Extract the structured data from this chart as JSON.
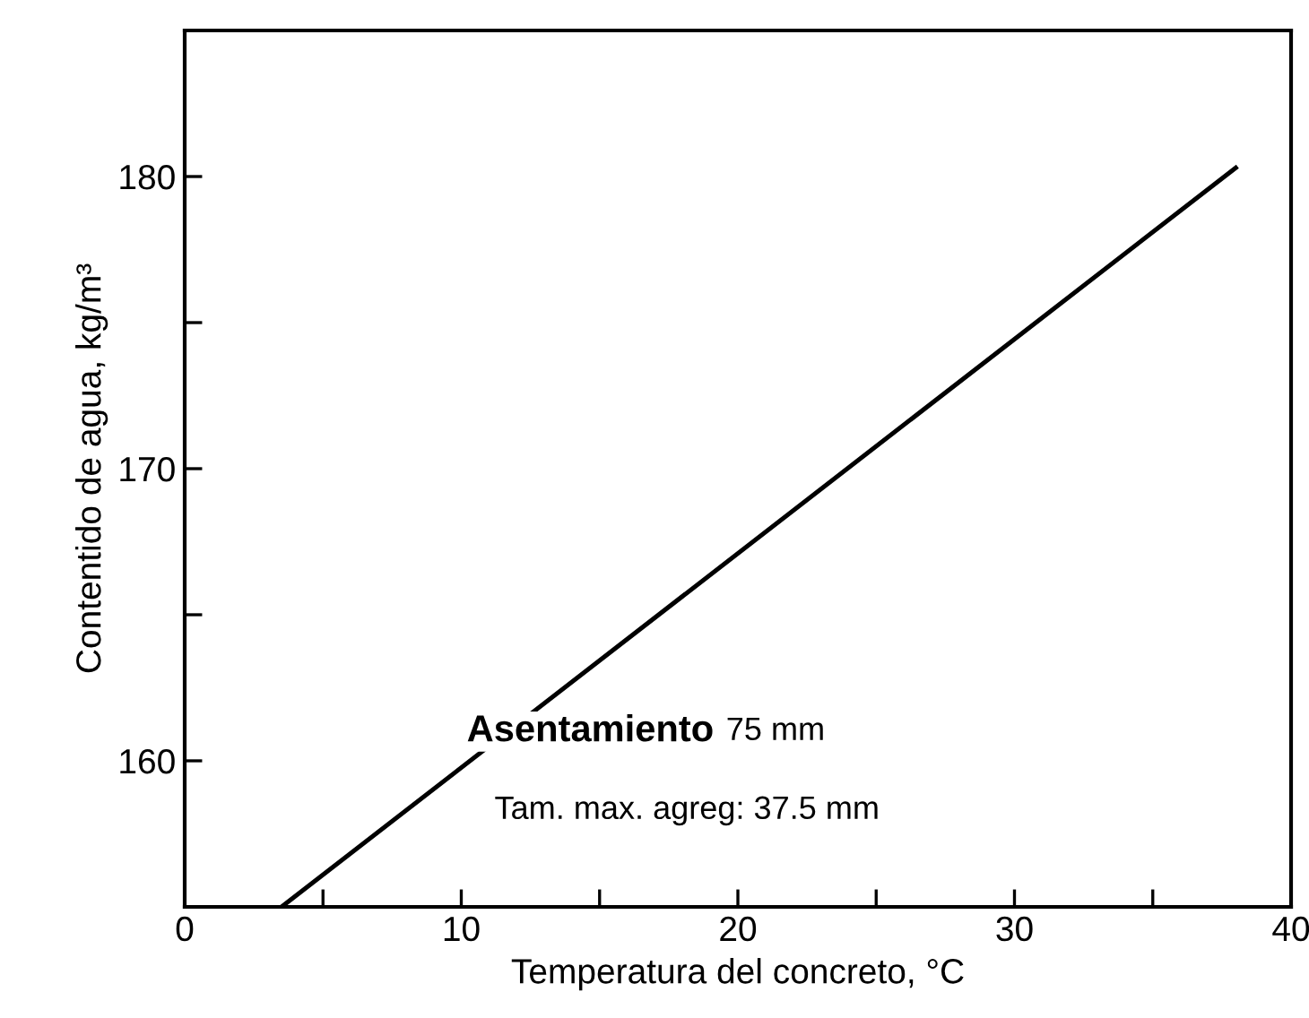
{
  "chart_data": {
    "type": "line",
    "xlabel": "Temperatura del concreto, °C",
    "ylabel": "Contentido de agua, kg/m³",
    "x": [
      3.5,
      38
    ],
    "series": [
      {
        "color": "#000000",
        "values": [
          155,
          180.3
        ]
      }
    ],
    "xlim": [
      0,
      40
    ],
    "ylim": [
      155,
      185
    ],
    "xticks": [
      0,
      {
        "value": 5,
        "label": null
      },
      10,
      {
        "value": 15,
        "label": null
      },
      20,
      {
        "value": 25,
        "label": null
      },
      30,
      {
        "value": 35,
        "label": null
      },
      40
    ],
    "yticks": [
      160,
      {
        "value": 165,
        "label": null
      },
      170,
      {
        "value": 175,
        "label": null
      },
      180
    ],
    "annotations": [
      "Asentamiento",
      "75 mm",
      "Tam. max. agreg: 37.5 mm"
    ],
    "grid": false,
    "legend": false,
    "marker": "none",
    "line_style": "solid"
  }
}
